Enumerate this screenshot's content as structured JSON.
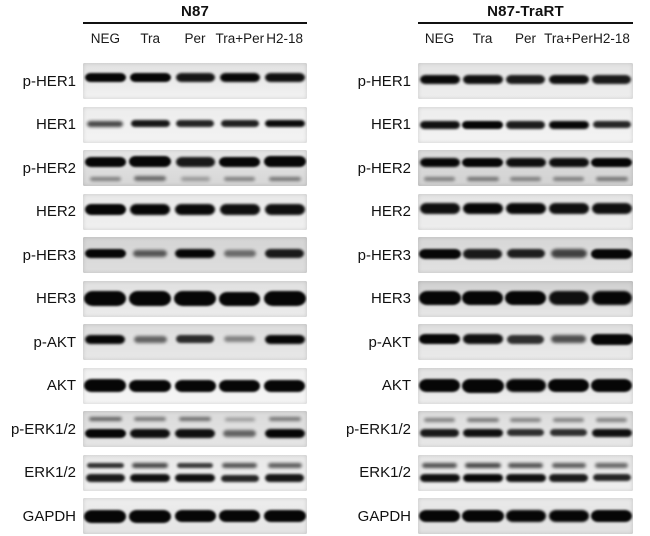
{
  "figure": {
    "type": "western-blot",
    "colors": {
      "background": "#ffffff",
      "text": "#111111",
      "band": "#060606",
      "underline": "#111111"
    },
    "lanes": [
      "NEG",
      "Tra",
      "Per",
      "Tra+Per",
      "H2-18"
    ],
    "targets": [
      "p-HER1",
      "HER1",
      "p-HER2",
      "HER2",
      "p-HER3",
      "HER3",
      "p-AKT",
      "AKT",
      "p-ERK1/2",
      "ERK1/2",
      "GAPDH"
    ],
    "panels": [
      {
        "title": "N87",
        "lanes": [
          "NEG",
          "Tra",
          "Per",
          "Tra+Per",
          "H2-18"
        ],
        "rows": [
          {
            "target": "p-HER1",
            "bg_top": "#e2e2e2",
            "bg_bottom": "#f2f2f2",
            "bands": [
              {
                "offset": 0.4,
                "height": 9,
                "intensities": [
                  0.95,
                  0.95,
                  0.82,
                  0.9,
                  0.85
                ]
              }
            ]
          },
          {
            "target": "HER1",
            "bg_top": "#ededed",
            "bg_bottom": "#f3f3f3",
            "bands": [
              {
                "offset": 0.48,
                "height": 7,
                "intensities": [
                  0.6,
                  0.82,
                  0.76,
                  0.78,
                  0.88
                ]
              }
            ]
          },
          {
            "target": "p-HER2",
            "bg_top": "#e6e6e6",
            "bg_bottom": "#d6d6d6",
            "bands": [
              {
                "offset": 0.32,
                "height": 10,
                "intensities": [
                  0.95,
                  1.0,
                  0.8,
                  0.95,
                  1.0
                ]
              },
              {
                "offset": 0.8,
                "height": 6,
                "intensities": [
                  0.3,
                  0.4,
                  0.2,
                  0.3,
                  0.35
                ]
              }
            ]
          },
          {
            "target": "HER2",
            "bg_top": "#e9e9e9",
            "bg_bottom": "#f0f0f0",
            "bands": [
              {
                "offset": 0.44,
                "height": 11,
                "intensities": [
                  0.95,
                  0.9,
                  0.88,
                  0.85,
                  0.85
                ]
              }
            ]
          },
          {
            "target": "p-HER3",
            "bg_top": "#d4d4d4",
            "bg_bottom": "#dedede",
            "bands": [
              {
                "offset": 0.45,
                "height": 9,
                "intensities": [
                  0.95,
                  0.5,
                  0.9,
                  0.4,
                  0.8
                ]
              }
            ]
          },
          {
            "target": "HER3",
            "bg_top": "#e0e0e0",
            "bg_bottom": "#ececec",
            "bands": [
              {
                "offset": 0.5,
                "height": 14,
                "intensities": [
                  1.0,
                  1.0,
                  1.0,
                  0.95,
                  1.0
                ]
              }
            ]
          },
          {
            "target": "p-AKT",
            "bg_top": "#dcdcdc",
            "bg_bottom": "#e8e8e8",
            "bands": [
              {
                "offset": 0.43,
                "height": 9,
                "intensities": [
                  0.9,
                  0.45,
                  0.72,
                  0.3,
                  0.9
                ]
              }
            ]
          },
          {
            "target": "AKT",
            "bg_top": "#f0f0f0",
            "bg_bottom": "#f5f5f5",
            "bands": [
              {
                "offset": 0.5,
                "height": 12,
                "intensities": [
                  1.0,
                  0.98,
                  0.95,
                  0.95,
                  0.95
                ]
              }
            ]
          },
          {
            "target": "p-ERK1/2",
            "bg_top": "#dadada",
            "bg_bottom": "#e6e6e6",
            "bands": [
              {
                "offset": 0.23,
                "height": 5,
                "intensities": [
                  0.45,
                  0.35,
                  0.4,
                  0.25,
                  0.35
                ]
              },
              {
                "offset": 0.63,
                "height": 9,
                "intensities": [
                  0.95,
                  0.85,
                  0.85,
                  0.45,
                  0.9
                ]
              }
            ]
          },
          {
            "target": "ERK1/2",
            "bg_top": "#e8e8e8",
            "bg_bottom": "#f0f0f0",
            "bands": [
              {
                "offset": 0.3,
                "height": 6,
                "intensities": [
                  0.7,
                  0.6,
                  0.65,
                  0.55,
                  0.5
                ]
              },
              {
                "offset": 0.66,
                "height": 8,
                "intensities": [
                  0.8,
                  0.85,
                  0.85,
                  0.75,
                  0.82
                ]
              }
            ]
          },
          {
            "target": "GAPDH",
            "bg_top": "#ededed",
            "bg_bottom": "#e5e5e5",
            "bands": [
              {
                "offset": 0.5,
                "height": 12,
                "intensities": [
                  1.0,
                  1.0,
                  0.95,
                  0.95,
                  0.97
                ]
              }
            ]
          }
        ]
      },
      {
        "title": "N87-TraRT",
        "lanes": [
          "NEG",
          "Tra",
          "Per",
          "Tra+Per",
          "H2-18"
        ],
        "rows": [
          {
            "target": "p-HER1",
            "bg_top": "#e3e3e3",
            "bg_bottom": "#eeeeee",
            "bands": [
              {
                "offset": 0.45,
                "height": 9,
                "intensities": [
                  0.88,
                  0.85,
                  0.8,
                  0.85,
                  0.8
                ]
              }
            ]
          },
          {
            "target": "HER1",
            "bg_top": "#ededed",
            "bg_bottom": "#f3f3f3",
            "bands": [
              {
                "offset": 0.5,
                "height": 8,
                "intensities": [
                  0.85,
                  0.95,
                  0.8,
                  0.9,
                  0.75
                ]
              }
            ]
          },
          {
            "target": "p-HER2",
            "bg_top": "#dddddd",
            "bg_bottom": "#d2d2d2",
            "bands": [
              {
                "offset": 0.36,
                "height": 9,
                "intensities": [
                  0.9,
                  0.95,
                  0.85,
                  0.85,
                  0.95
                ]
              },
              {
                "offset": 0.8,
                "height": 6,
                "intensities": [
                  0.3,
                  0.35,
                  0.3,
                  0.3,
                  0.35
                ]
              }
            ]
          },
          {
            "target": "HER2",
            "bg_top": "#e4e4e4",
            "bg_bottom": "#eeeeee",
            "bands": [
              {
                "offset": 0.42,
                "height": 11,
                "intensities": [
                  0.85,
                  0.9,
                  0.88,
                  0.85,
                  0.85
                ]
              }
            ]
          },
          {
            "target": "p-HER3",
            "bg_top": "#d6d6d6",
            "bg_bottom": "#e2e2e2",
            "bands": [
              {
                "offset": 0.46,
                "height": 10,
                "intensities": [
                  0.97,
                  0.8,
                  0.78,
                  0.6,
                  0.95
                ]
              }
            ]
          },
          {
            "target": "HER3",
            "bg_top": "#cfcfcf",
            "bg_bottom": "#e8e8e8",
            "bands": [
              {
                "offset": 0.48,
                "height": 14,
                "intensities": [
                  0.97,
                  0.95,
                  0.95,
                  0.85,
                  0.9
                ]
              }
            ]
          },
          {
            "target": "p-AKT",
            "bg_top": "#dfdfdf",
            "bg_bottom": "#eaeaea",
            "bands": [
              {
                "offset": 0.42,
                "height": 10,
                "intensities": [
                  0.95,
                  0.85,
                  0.7,
                  0.55,
                  1.0
                ]
              }
            ]
          },
          {
            "target": "AKT",
            "bg_top": "#e2e2e2",
            "bg_bottom": "#eeeeee",
            "bands": [
              {
                "offset": 0.5,
                "height": 13,
                "intensities": [
                  0.95,
                  1.0,
                  0.9,
                  0.95,
                  0.95
                ]
              }
            ]
          },
          {
            "target": "p-ERK1/2",
            "bg_top": "#dcdcdc",
            "bg_bottom": "#e8e8e8",
            "bands": [
              {
                "offset": 0.25,
                "height": 5,
                "intensities": [
                  0.3,
                  0.35,
                  0.3,
                  0.3,
                  0.3
                ]
              },
              {
                "offset": 0.6,
                "height": 8,
                "intensities": [
                  0.8,
                  0.85,
                  0.7,
                  0.7,
                  0.85
                ]
              }
            ]
          },
          {
            "target": "ERK1/2",
            "bg_top": "#e6e6e6",
            "bg_bottom": "#efefef",
            "bands": [
              {
                "offset": 0.3,
                "height": 6,
                "intensities": [
                  0.55,
                  0.6,
                  0.55,
                  0.5,
                  0.45
                ]
              },
              {
                "offset": 0.64,
                "height": 8,
                "intensities": [
                  0.85,
                  0.9,
                  0.85,
                  0.8,
                  0.75
                ]
              }
            ]
          },
          {
            "target": "GAPDH",
            "bg_top": "#e9e9e9",
            "bg_bottom": "#e2e2e2",
            "bands": [
              {
                "offset": 0.5,
                "height": 12,
                "intensities": [
                  0.95,
                  0.97,
                  0.9,
                  0.9,
                  0.95
                ]
              }
            ]
          }
        ]
      }
    ]
  }
}
